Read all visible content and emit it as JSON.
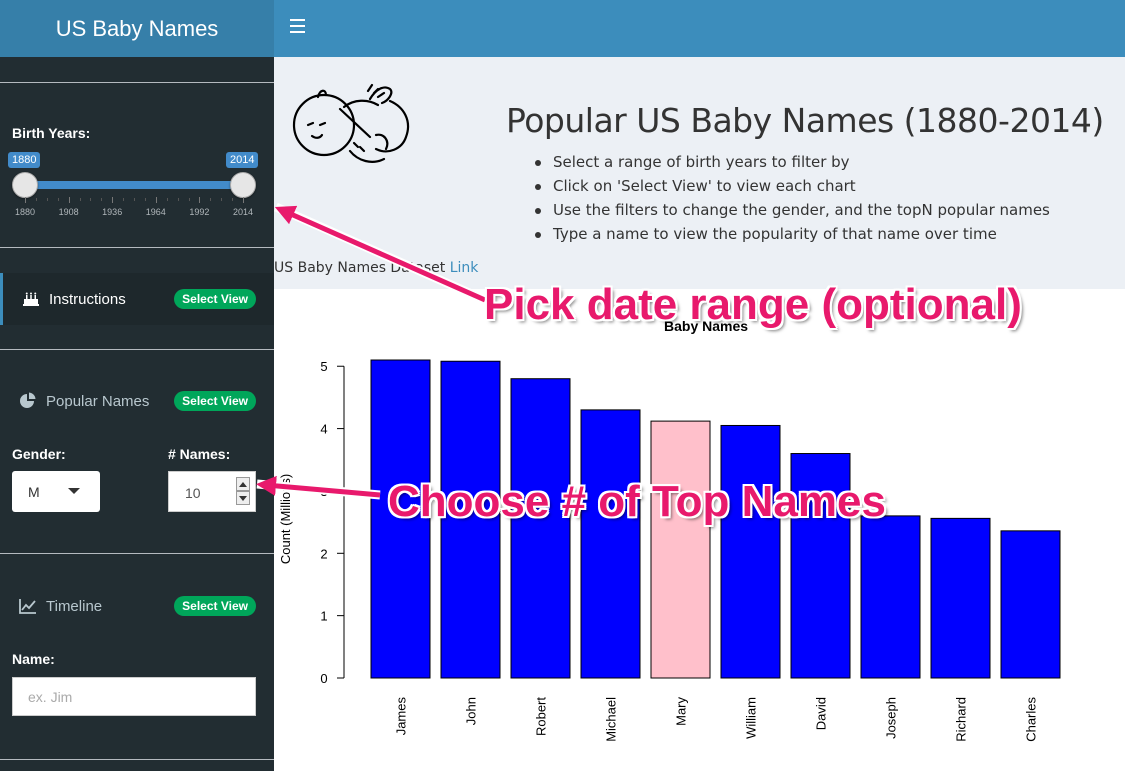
{
  "app": {
    "title": "US Baby Names"
  },
  "sidebar": {
    "birth_years": {
      "label": "Birth Years:",
      "min_value": "1880",
      "max_value": "2014",
      "ticks": [
        "1880",
        "1908",
        "1936",
        "1964",
        "1992",
        "2014"
      ]
    },
    "instructions": {
      "label": "Instructions",
      "badge": "Select View"
    },
    "popular_names": {
      "label": "Popular Names",
      "badge": "Select View"
    },
    "gender": {
      "label": "Gender:",
      "value": "M"
    },
    "num_names": {
      "label": "# Names:",
      "value": "10"
    },
    "timeline": {
      "label": "Timeline",
      "badge": "Select View"
    },
    "name": {
      "label": "Name:",
      "placeholder": "ex. Jim"
    }
  },
  "info": {
    "title": "Popular US Baby Names (1880-2014)",
    "bullets": [
      "Select a range of birth years to filter by",
      "Click on 'Select View' to view each chart",
      "Use the filters to change the gender, and the topN popular names",
      "Type a name to view the popularity of that name over time"
    ],
    "dataset_text": "US Baby Names Dataset",
    "dataset_link": "Link"
  },
  "annotations": {
    "date_range": "Pick date range (optional)",
    "top_names": "Choose # of Top  Names"
  },
  "colors": {
    "bar_default": "#0000ff",
    "bar_highlight": "#ffc0cb",
    "accent": "#3c8dbc",
    "annotation": "#e8196c"
  },
  "chart_data": {
    "type": "bar",
    "title": "Baby Names",
    "ylabel": "Count (Millions)",
    "xlabel": "",
    "categories": [
      "James",
      "John",
      "Robert",
      "Michael",
      "Mary",
      "William",
      "David",
      "Joseph",
      "Richard",
      "Charles"
    ],
    "values": [
      5.1,
      5.08,
      4.8,
      4.3,
      4.12,
      4.05,
      3.6,
      2.6,
      2.56,
      2.36
    ],
    "highlight": [
      "Mary"
    ],
    "ylim": [
      0,
      5.1
    ],
    "yticks": [
      0,
      1,
      2,
      3,
      4,
      5
    ]
  }
}
